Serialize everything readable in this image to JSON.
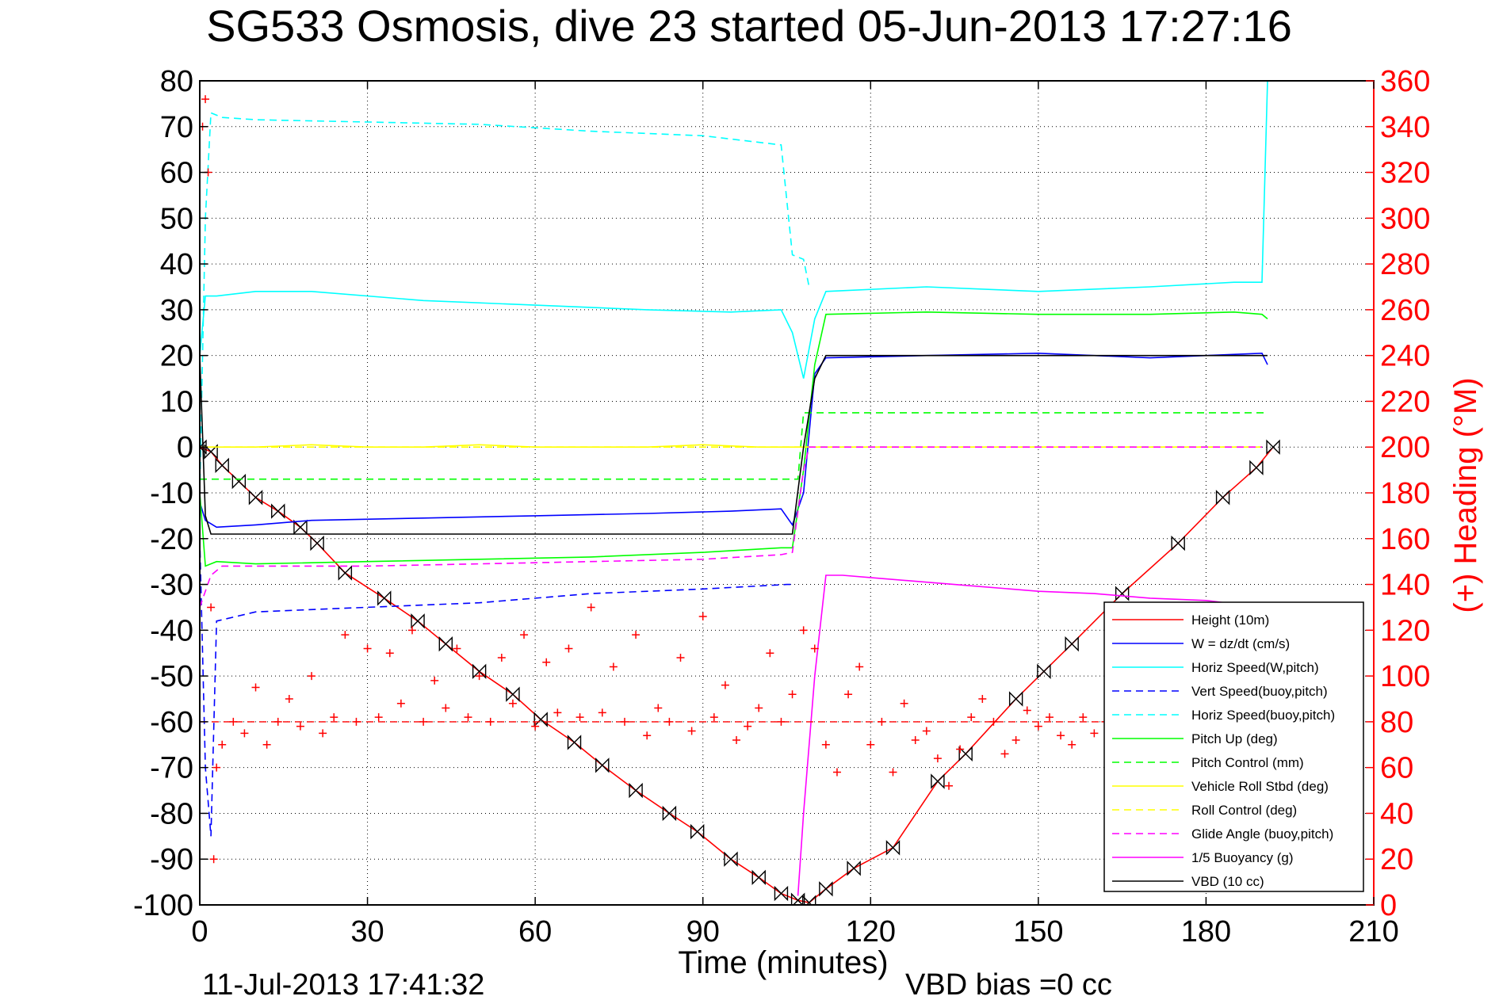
{
  "chart_data": {
    "type": "line",
    "title": "SG533 Osmosis, dive 23 started 05-Jun-2013 17:27:16",
    "xlabel": "Time (minutes)",
    "ylabel": "",
    "y2label": "(+) Heading (°M)",
    "footer_left": "11-Jul-2013 17:41:32",
    "footer_right": "VBD bias =0 cc",
    "xlim": [
      0,
      210
    ],
    "ylim": [
      -100,
      80
    ],
    "y2lim": [
      0,
      360
    ],
    "grid": true,
    "legend_position": "lower-right",
    "xticks": [
      "0",
      "30",
      "60",
      "90",
      "120",
      "150",
      "180",
      "210"
    ],
    "yticks": [
      "-100",
      "-90",
      "-80",
      "-70",
      "-60",
      "-50",
      "-40",
      "-30",
      "-20",
      "-10",
      "0",
      "10",
      "20",
      "30",
      "40",
      "50",
      "60",
      "70",
      "80"
    ],
    "y2ticks": [
      "0",
      "20",
      "40",
      "60",
      "80",
      "100",
      "120",
      "140",
      "160",
      "180",
      "200",
      "220",
      "240",
      "260",
      "280",
      "300",
      "320",
      "340",
      "360"
    ],
    "series": [
      {
        "name": "Height (10m)",
        "color": "#ff0000",
        "dash": "solid",
        "marker": "bowtie",
        "x": [
          0,
          2,
          4,
          7,
          10,
          14,
          18,
          21,
          26,
          33,
          39,
          44,
          50,
          56,
          61,
          67,
          72,
          78,
          84,
          89,
          95,
          100,
          104,
          107,
          109,
          112,
          117,
          124,
          132,
          137,
          146,
          151,
          156,
          165,
          175,
          183,
          189,
          192
        ],
        "y": [
          0,
          -1,
          -4,
          -7.5,
          -11,
          -14,
          -17.5,
          -21,
          -27.5,
          -33,
          -38,
          -43,
          -49,
          -54,
          -59.5,
          -64.5,
          -69.5,
          -75,
          -80,
          -84,
          -90,
          -94,
          -97.5,
          -99,
          -99.5,
          -96.5,
          -92,
          -87.5,
          -73,
          -67,
          -55,
          -49,
          -43,
          -32,
          -21,
          -11,
          -4.5,
          0
        ]
      },
      {
        "name": "W = dz/dt (cm/s)",
        "color": "#0000ff",
        "dash": "solid",
        "x": [
          0,
          1,
          3,
          10,
          20,
          40,
          60,
          80,
          95,
          104,
          106,
          108,
          110,
          112,
          130,
          150,
          160,
          170,
          180,
          190,
          191
        ],
        "y": [
          -12,
          -16,
          -17.5,
          -17,
          -16,
          -15.5,
          -15,
          -14.5,
          -14,
          -13.5,
          -17,
          -10,
          16,
          19.5,
          20,
          20.5,
          20,
          19.5,
          20,
          20.5,
          18
        ]
      },
      {
        "name": "Horiz Speed(W,pitch)",
        "color": "#00ffff",
        "dash": "solid",
        "x": [
          0,
          1,
          3,
          10,
          20,
          40,
          60,
          80,
          95,
          104,
          106,
          108,
          110,
          112,
          130,
          150,
          170,
          185,
          190,
          191
        ],
        "y": [
          20,
          33,
          33,
          34,
          34,
          32,
          31,
          30,
          29.5,
          30,
          25,
          15,
          28,
          34,
          35,
          34,
          35,
          36,
          36,
          80
        ]
      },
      {
        "name": "Vert Speed(buoy,pitch)",
        "color": "#0000ff",
        "dash": "dashed",
        "x": [
          0,
          1,
          2,
          3,
          10,
          30,
          50,
          70,
          90,
          105,
          106
        ],
        "y": [
          -20,
          -70,
          -85,
          -38,
          -36,
          -35,
          -34,
          -32,
          -31,
          -30,
          -30
        ]
      },
      {
        "name": "Horiz Speed(buoy,pitch)",
        "color": "#00ffff",
        "dash": "dashed",
        "x": [
          0,
          1,
          2,
          4,
          10,
          30,
          50,
          70,
          90,
          104,
          106,
          108,
          109
        ],
        "y": [
          -10,
          50,
          73,
          72,
          71.5,
          71,
          70.5,
          69,
          68,
          66,
          42,
          41,
          35
        ]
      },
      {
        "name": "Pitch Up (deg)",
        "color": "#00ff00",
        "dash": "solid",
        "x": [
          0,
          1,
          3,
          10,
          30,
          50,
          70,
          90,
          104,
          106,
          108,
          110,
          112,
          130,
          150,
          170,
          185,
          190,
          191
        ],
        "y": [
          -10,
          -26,
          -25,
          -25.5,
          -25,
          -24.5,
          -24,
          -23,
          -22,
          -22,
          -5,
          18,
          29,
          29.5,
          29,
          29,
          29.5,
          29,
          28
        ]
      },
      {
        "name": "Pitch Control (mm)",
        "color": "#00ff00",
        "dash": "dashed",
        "x": [
          0,
          2,
          106,
          107,
          108,
          191
        ],
        "y": [
          -7,
          -7,
          -7,
          -7,
          7.5,
          7.5
        ]
      },
      {
        "name": "Vehicle Roll Stbd (deg)",
        "color": "#ffff00",
        "dash": "solid",
        "x": [
          0,
          10,
          20,
          30,
          40,
          50,
          60,
          70,
          80,
          90,
          100,
          106,
          108,
          110,
          120,
          130,
          140,
          150,
          160,
          170,
          180,
          190
        ],
        "y": [
          0,
          0,
          0.5,
          0,
          0,
          0.5,
          0,
          0,
          0,
          0.5,
          0,
          0,
          0,
          0,
          0,
          0,
          0,
          0,
          0,
          0,
          0,
          0
        ]
      },
      {
        "name": "Roll Control (deg)",
        "color": "#ffff00",
        "dash": "dashed",
        "x": [
          0,
          190
        ],
        "y": [
          0,
          0
        ]
      },
      {
        "name": "Glide Angle (buoy,pitch)",
        "color": "#ff00ff",
        "dash": "dashed",
        "x": [
          0,
          2,
          4,
          10,
          30,
          50,
          70,
          90,
          104,
          106,
          108,
          109,
          190
        ],
        "y": [
          -35,
          -28,
          -26,
          -26,
          -26,
          -25.5,
          -25,
          -24.5,
          -23.5,
          -23,
          -5,
          0,
          0
        ]
      },
      {
        "name": "1/5 Buoyancy (g)",
        "color": "#ff00ff",
        "dash": "solid",
        "x": [
          107,
          108,
          110,
          112,
          115,
          120,
          130,
          140,
          150,
          160,
          170,
          180,
          190
        ],
        "y": [
          -98,
          -80,
          -50,
          -28,
          -28,
          -28.5,
          -29.5,
          -30.5,
          -31.5,
          -32,
          -33,
          -33.5,
          -35
        ]
      },
      {
        "name": "VBD (10 cc)",
        "color": "#000000",
        "dash": "solid",
        "x": [
          0,
          1,
          2,
          106,
          108,
          110,
          112,
          191
        ],
        "y": [
          20,
          -15,
          -19,
          -19,
          0,
          15,
          20,
          20
        ]
      }
    ],
    "heading": {
      "color": "#ff0000",
      "marker": "+",
      "axis": "right",
      "mean": 80,
      "x": [
        0.5,
        1,
        1.5,
        2,
        2.5,
        3,
        4,
        6,
        8,
        10,
        12,
        14,
        16,
        18,
        20,
        22,
        24,
        26,
        28,
        30,
        32,
        34,
        36,
        38,
        40,
        42,
        44,
        46,
        48,
        50,
        52,
        54,
        56,
        58,
        60,
        62,
        64,
        66,
        68,
        70,
        72,
        74,
        76,
        78,
        80,
        82,
        84,
        86,
        88,
        90,
        92,
        94,
        96,
        98,
        100,
        102,
        104,
        106,
        108,
        110,
        112,
        114,
        116,
        118,
        120,
        122,
        124,
        126,
        128,
        130,
        132,
        134,
        136,
        138,
        140,
        142,
        144,
        146,
        148,
        150,
        152,
        154,
        156,
        158,
        160,
        162
      ],
      "y": [
        340,
        352,
        320,
        130,
        20,
        60,
        70,
        80,
        75,
        95,
        70,
        80,
        90,
        78,
        100,
        75,
        82,
        118,
        80,
        112,
        82,
        110,
        88,
        120,
        80,
        98,
        86,
        112,
        82,
        100,
        80,
        108,
        88,
        118,
        78,
        106,
        84,
        112,
        82,
        130,
        84,
        104,
        80,
        118,
        74,
        86,
        80,
        108,
        76,
        126,
        82,
        96,
        72,
        78,
        86,
        110,
        80,
        92,
        120,
        112,
        70,
        58,
        92,
        104,
        70,
        80,
        58,
        88,
        72,
        76,
        64,
        52,
        68,
        82,
        90,
        80,
        66,
        72,
        85,
        78,
        82,
        74,
        70,
        82,
        75,
        80
      ]
    },
    "legend": [
      "Height (10m)",
      "W = dz/dt (cm/s)",
      "Horiz Speed(W,pitch)",
      "Vert Speed(buoy,pitch)",
      "Horiz Speed(buoy,pitch)",
      "Pitch Up (deg)",
      "Pitch Control (mm)",
      "Vehicle Roll Stbd (deg)",
      "Roll Control (deg)",
      "Glide Angle (buoy,pitch)",
      "1/5 Buoyancy (g)",
      "VBD (10 cc)"
    ]
  }
}
